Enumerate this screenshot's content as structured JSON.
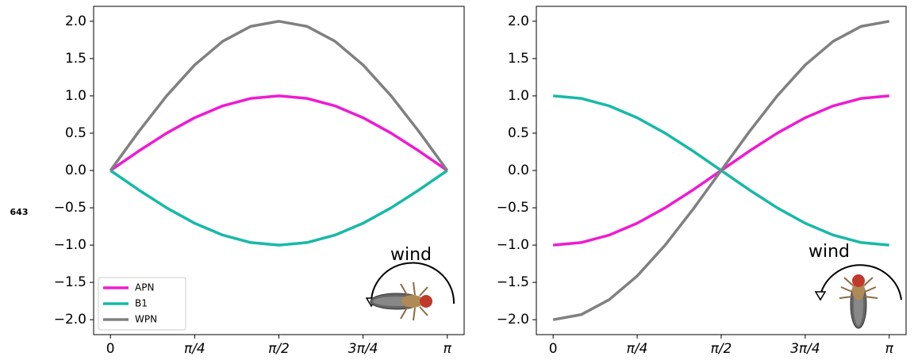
{
  "margin_label": "643",
  "chart_data": [
    {
      "type": "line",
      "annotation": "wind",
      "legend": "lower left",
      "grid": false,
      "x": [
        0,
        0.2618,
        0.5236,
        0.7854,
        1.0472,
        1.309,
        1.5708,
        1.8326,
        2.0944,
        2.3562,
        2.618,
        2.8798,
        3.1416
      ],
      "xlim": [
        -0.157,
        3.299
      ],
      "xticks": [
        0,
        {
          "value": 0.7854,
          "label": "π/4"
        },
        {
          "value": 1.5708,
          "label": "π/2"
        },
        {
          "value": 2.3562,
          "label": "3π/4"
        },
        {
          "value": 3.1416,
          "label": "π"
        }
      ],
      "ylim": [
        -2.2,
        2.2
      ],
      "yticks": [
        {
          "value": -2,
          "label": "−2.0"
        },
        {
          "value": -1.5,
          "label": "−1.5"
        },
        {
          "value": -1,
          "label": "−1.0"
        },
        {
          "value": -0.5,
          "label": "−0.5"
        },
        {
          "value": 0,
          "label": "0.0"
        },
        {
          "value": 0.5,
          "label": "0.5"
        },
        {
          "value": 1,
          "label": "1.0"
        },
        {
          "value": 1.5,
          "label": "1.5"
        },
        {
          "value": 2,
          "label": "2.0"
        }
      ],
      "series": [
        {
          "name": "APN",
          "color": "#ee1bd2",
          "values": [
            0,
            0.2588,
            0.5,
            0.7071,
            0.866,
            0.9659,
            1,
            0.9659,
            0.866,
            0.7071,
            0.5,
            0.2588,
            0
          ]
        },
        {
          "name": "B1",
          "color": "#17b9a8",
          "values": [
            0,
            -0.2588,
            -0.5,
            -0.7071,
            -0.866,
            -0.9659,
            -1,
            -0.9659,
            -0.866,
            -0.7071,
            -0.5,
            -0.2588,
            0
          ]
        },
        {
          "name": "WPN",
          "color": "#808080",
          "values": [
            0,
            0.5176,
            1,
            1.4142,
            1.7321,
            1.9319,
            2,
            1.9319,
            1.7321,
            1.4142,
            1,
            0.5176,
            0
          ]
        }
      ]
    },
    {
      "type": "line",
      "annotation": "wind",
      "grid": false,
      "x": [
        0,
        0.2618,
        0.5236,
        0.7854,
        1.0472,
        1.309,
        1.5708,
        1.8326,
        2.0944,
        2.3562,
        2.618,
        2.8798,
        3.1416
      ],
      "xlim": [
        -0.157,
        3.299
      ],
      "xticks": [
        0,
        {
          "value": 0.7854,
          "label": "π/4"
        },
        {
          "value": 1.5708,
          "label": "π/2"
        },
        {
          "value": 2.3562,
          "label": "3π/4"
        },
        {
          "value": 3.1416,
          "label": "π"
        }
      ],
      "ylim": [
        -2.2,
        2.2
      ],
      "yticks": [
        {
          "value": -2,
          "label": "−2.0"
        },
        {
          "value": -1.5,
          "label": "−1.5"
        },
        {
          "value": -1,
          "label": "−1.0"
        },
        {
          "value": -0.5,
          "label": "−0.5"
        },
        {
          "value": 0,
          "label": "0.0"
        },
        {
          "value": 0.5,
          "label": "0.5"
        },
        {
          "value": 1,
          "label": "1.0"
        },
        {
          "value": 1.5,
          "label": "1.5"
        },
        {
          "value": 2,
          "label": "2.0"
        }
      ],
      "series": [
        {
          "color": "#ee1bd2",
          "values": [
            -1,
            -0.9659,
            -0.866,
            -0.7071,
            -0.5,
            -0.2588,
            0,
            0.2588,
            0.5,
            0.7071,
            0.866,
            0.9659,
            1
          ]
        },
        {
          "color": "#17b9a8",
          "values": [
            1,
            0.9659,
            0.866,
            0.7071,
            0.5,
            0.2588,
            0,
            -0.2588,
            -0.5,
            -0.7071,
            -0.866,
            -0.9659,
            -1
          ]
        },
        {
          "color": "#808080",
          "values": [
            -2,
            -1.9319,
            -1.732,
            -1.4142,
            -1,
            -0.5176,
            0,
            0.5176,
            1,
            1.4142,
            1.732,
            1.9319,
            2
          ]
        }
      ]
    }
  ]
}
